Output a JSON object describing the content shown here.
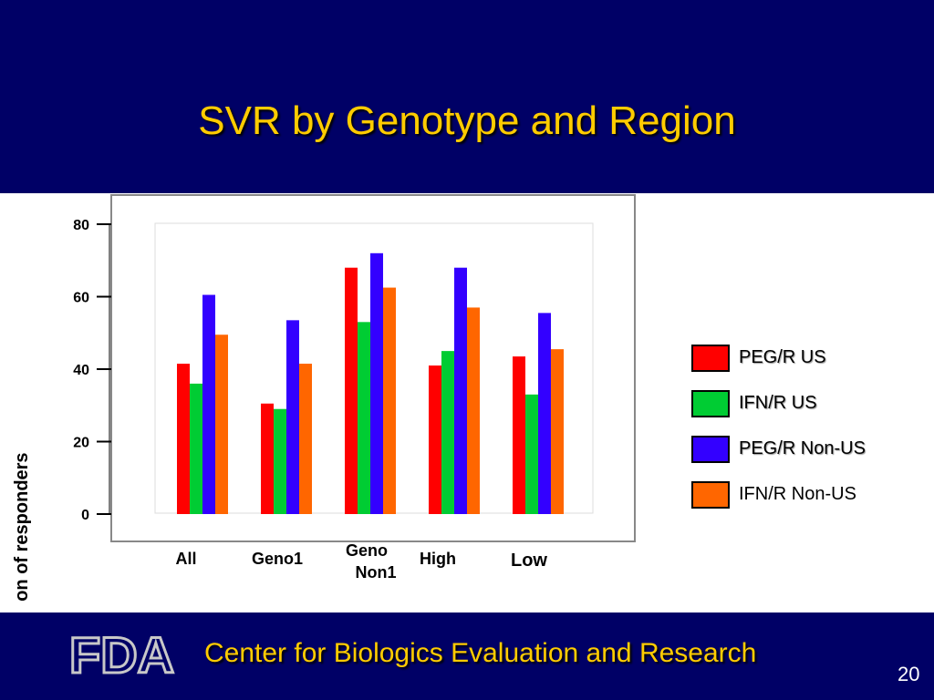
{
  "slide": {
    "title": "SVR by Genotype and Region",
    "footer": "Center for Biologics Evaluation and Research",
    "page_number": "20",
    "logo_text": "FDA"
  },
  "colors": {
    "background_band": "#000066",
    "title": "#ffcc00",
    "peg_r_us": "#ff0000",
    "ifn_r_us": "#00cc33",
    "peg_r_non_us": "#3300ff",
    "ifn_r_non_us": "#ff6600"
  },
  "chart_data": {
    "type": "bar",
    "ylabel": "Proportion of responders",
    "xlabel": "",
    "ylim": [
      0,
      80
    ],
    "yticks": [
      0,
      20,
      40,
      60,
      80
    ],
    "grid": false,
    "legend_position": "right",
    "categories": [
      "All",
      "Geno1",
      "Geno Non1",
      "High",
      "Low"
    ],
    "series": [
      {
        "name": "PEG/R US",
        "color": "#ff0000",
        "values": [
          41.5,
          30.5,
          68,
          41,
          43.5
        ]
      },
      {
        "name": "IFN/R US",
        "color": "#00cc33",
        "values": [
          36,
          29,
          53,
          45,
          33
        ]
      },
      {
        "name": "PEG/R Non-US",
        "color": "#3300ff",
        "values": [
          60.5,
          53.5,
          72,
          68,
          55.5
        ]
      },
      {
        "name": "IFN/R Non-US",
        "color": "#ff6600",
        "values": [
          49.5,
          41.5,
          62.5,
          57,
          45.5
        ]
      }
    ]
  }
}
